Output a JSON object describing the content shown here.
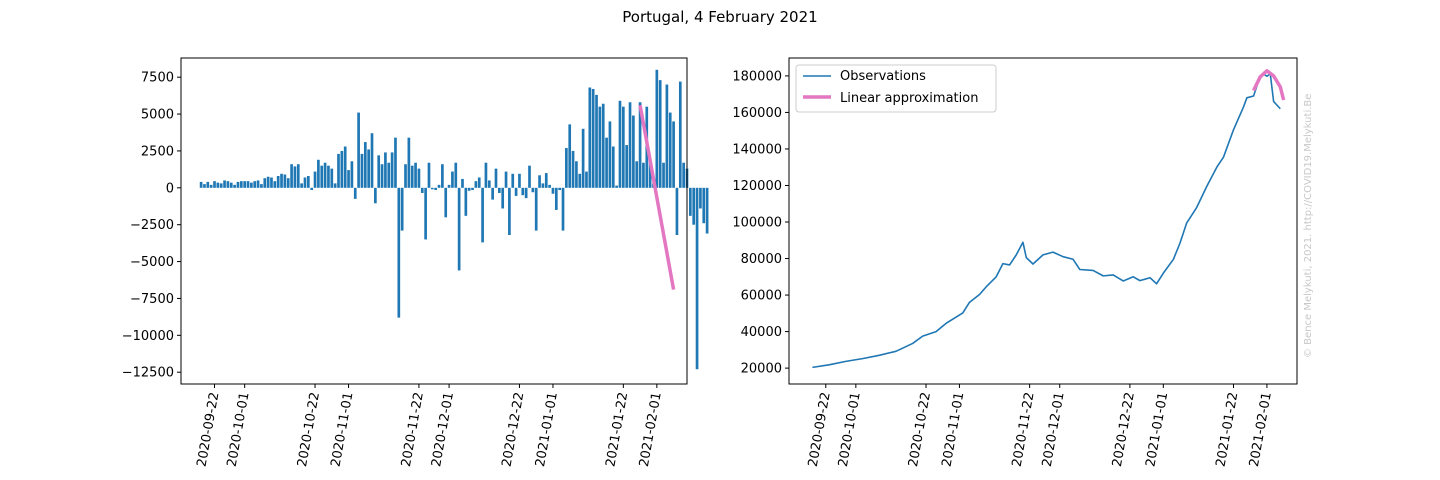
{
  "figure": {
    "title": "Portugal, 4 February 2021",
    "watermark": "© Bence Melykuti, 2021. http://COVID19.Melykuti.Be"
  },
  "colors": {
    "observations": "#1f77b4",
    "approximation": "#e377c2"
  },
  "chart_data": [
    {
      "type": "bar",
      "title": "",
      "xlabel": "",
      "ylabel": "",
      "x_tick_labels": [
        "2020-09-22",
        "2020-10-01",
        "2020-10-22",
        "2020-11-01",
        "2020-11-22",
        "2020-12-01",
        "2020-12-22",
        "2021-01-01",
        "2021-01-22",
        "2021-02-01"
      ],
      "y_tick_labels": [
        "7500",
        "5000",
        "2500",
        "0",
        "−2500",
        "−5000",
        "−7500",
        "−10000",
        "−12500"
      ],
      "ylim": [
        -13300,
        8800
      ],
      "grid": false,
      "x_start": "2020-09-18",
      "values": [
        400,
        250,
        400,
        200,
        450,
        350,
        300,
        500,
        450,
        350,
        200,
        400,
        450,
        450,
        450,
        350,
        450,
        500,
        250,
        650,
        750,
        700,
        450,
        800,
        950,
        900,
        650,
        1600,
        1450,
        1600,
        300,
        700,
        800,
        -150,
        1100,
        1900,
        1500,
        1700,
        1500,
        1300,
        300,
        2300,
        2500,
        2800,
        1200,
        1800,
        -750,
        5100,
        2300,
        3100,
        2600,
        3700,
        -1050,
        2200,
        1600,
        2400,
        1700,
        2400,
        3400,
        -8800,
        -2900,
        1600,
        3400,
        1500,
        1700,
        1300,
        -350,
        -3500,
        1700,
        -100,
        -150,
        200,
        1600,
        -2000,
        200,
        1100,
        1700,
        -5600,
        600,
        -1900,
        -200,
        -150,
        450,
        700,
        -3700,
        1700,
        500,
        -800,
        1300,
        -350,
        -1400,
        1100,
        -3200,
        950,
        -550,
        950,
        -500,
        -700,
        1500,
        -300,
        -2900,
        850,
        300,
        1000,
        200,
        -400,
        -1500,
        -150,
        -2900,
        2700,
        4300,
        2500,
        1800,
        950,
        4000,
        1100,
        6800,
        6700,
        6300,
        5500,
        5700,
        3400,
        4500,
        2800,
        150,
        5900,
        5500,
        2900,
        5800,
        4900,
        1800,
        5800,
        1700,
        5500,
        2000,
        300,
        8000,
        7300,
        1700,
        7000,
        5100,
        4500,
        -3200,
        7200,
        1700,
        1300,
        -1900,
        -2500,
        -12300,
        -1400,
        -2400,
        -3100
      ],
      "approximation": {
        "name": "Linear approximation",
        "x": [
          "2021-01-27",
          "2021-01-29",
          "2021-01-31",
          "2021-02-02",
          "2021-02-04",
          "2021-02-06"
        ],
        "y": [
          5600,
          3100,
          600,
          -1900,
          -4400,
          -6900
        ]
      }
    },
    {
      "type": "line",
      "title": "",
      "xlabel": "",
      "ylabel": "",
      "x_tick_labels": [
        "2020-09-22",
        "2020-10-01",
        "2020-10-22",
        "2020-11-01",
        "2020-11-22",
        "2020-12-01",
        "2020-12-22",
        "2021-01-01",
        "2021-01-22",
        "2021-02-01"
      ],
      "y_tick_labels": [
        "20000",
        "40000",
        "60000",
        "80000",
        "100000",
        "120000",
        "140000",
        "160000",
        "180000"
      ],
      "ylim": [
        11300,
        189800
      ],
      "grid": false,
      "legend": {
        "position": "top-left",
        "entries": [
          "Observations",
          "Linear approximation"
        ]
      },
      "series": [
        {
          "name": "Observations",
          "points": [
            [
              "2020-09-18",
              20400
            ],
            [
              "2020-09-23",
              21800
            ],
            [
              "2020-09-28",
              23700
            ],
            [
              "2020-10-03",
              25200
            ],
            [
              "2020-10-08",
              27000
            ],
            [
              "2020-10-13",
              29200
            ],
            [
              "2020-10-18",
              33500
            ],
            [
              "2020-10-21",
              37500
            ],
            [
              "2020-10-25",
              40000
            ],
            [
              "2020-10-28",
              44500
            ],
            [
              "2020-11-02",
              50200
            ],
            [
              "2020-11-04",
              56000
            ],
            [
              "2020-11-07",
              60300
            ],
            [
              "2020-11-09",
              64500
            ],
            [
              "2020-11-12",
              70000
            ],
            [
              "2020-11-14",
              77200
            ],
            [
              "2020-11-16",
              76500
            ],
            [
              "2020-11-18",
              82000
            ],
            [
              "2020-11-20",
              88900
            ],
            [
              "2020-11-21",
              80500
            ],
            [
              "2020-11-23",
              77000
            ],
            [
              "2020-11-26",
              82000
            ],
            [
              "2020-11-29",
              83500
            ],
            [
              "2020-12-02",
              81000
            ],
            [
              "2020-12-05",
              79600
            ],
            [
              "2020-12-07",
              74000
            ],
            [
              "2020-12-11",
              73500
            ],
            [
              "2020-12-14",
              70500
            ],
            [
              "2020-12-17",
              71000
            ],
            [
              "2020-12-20",
              67700
            ],
            [
              "2020-12-23",
              70000
            ],
            [
              "2020-12-25",
              67900
            ],
            [
              "2020-12-28",
              69500
            ],
            [
              "2020-12-30",
              66200
            ],
            [
              "2021-01-01",
              72000
            ],
            [
              "2021-01-04",
              79500
            ],
            [
              "2021-01-06",
              88500
            ],
            [
              "2021-01-08",
              99500
            ],
            [
              "2021-01-11",
              108000
            ],
            [
              "2021-01-14",
              119500
            ],
            [
              "2021-01-17",
              130000
            ],
            [
              "2021-01-19",
              135500
            ],
            [
              "2021-01-22",
              150500
            ],
            [
              "2021-01-25",
              163000
            ],
            [
              "2021-01-26",
              168000
            ],
            [
              "2021-01-28",
              169000
            ],
            [
              "2021-01-30",
              180000
            ],
            [
              "2021-01-31",
              181000
            ],
            [
              "2021-02-01",
              179800
            ],
            [
              "2021-02-02",
              181200
            ],
            [
              "2021-02-03",
              166000
            ],
            [
              "2021-02-04",
              164000
            ],
            [
              "2021-02-05",
              162000
            ]
          ]
        },
        {
          "name": "Linear approximation",
          "points": [
            [
              "2021-01-28",
              172000
            ],
            [
              "2021-01-30",
              179500
            ],
            [
              "2021-02-01",
              182800
            ],
            [
              "2021-02-03",
              180000
            ],
            [
              "2021-02-05",
              174000
            ],
            [
              "2021-02-06",
              166800
            ]
          ]
        }
      ]
    }
  ]
}
